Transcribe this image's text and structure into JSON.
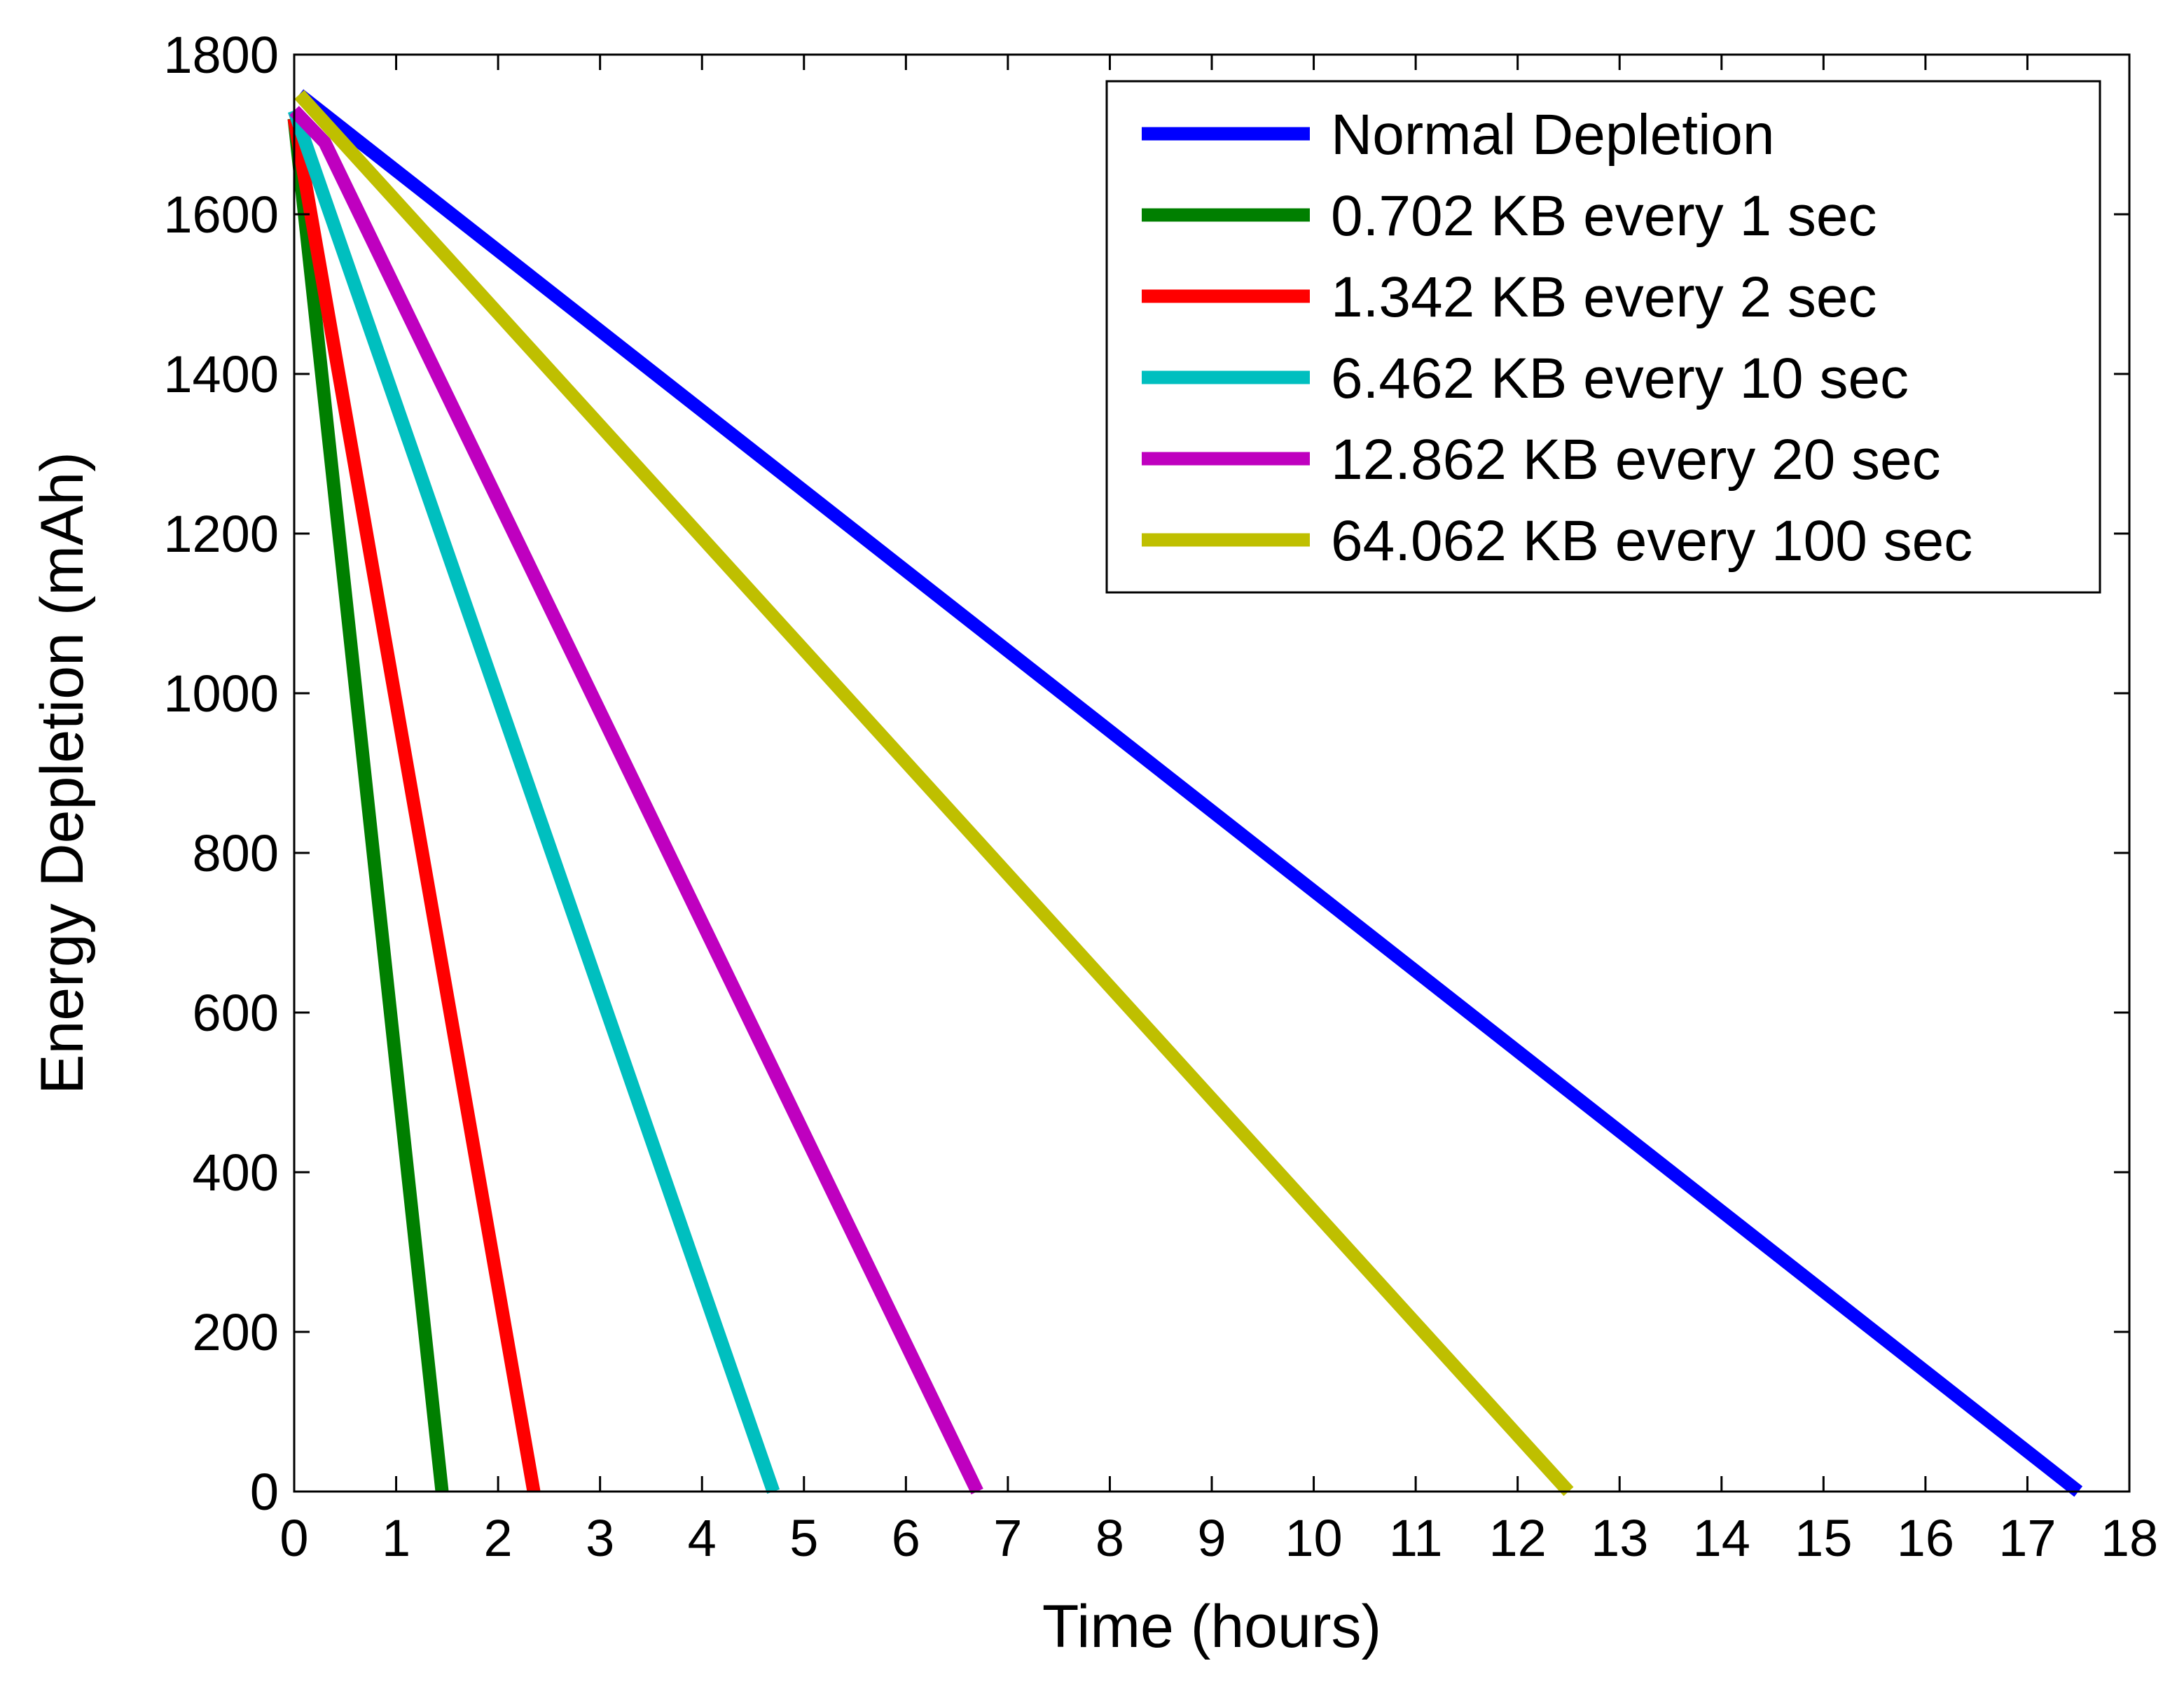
{
  "chart_data": {
    "type": "line",
    "title": "",
    "xlabel": "Time (hours)",
    "ylabel": "Energy Depletion (mAh)",
    "xlim": [
      0,
      18
    ],
    "ylim": [
      0,
      1800
    ],
    "xticks": [
      0,
      1,
      2,
      3,
      4,
      5,
      6,
      7,
      8,
      9,
      10,
      11,
      12,
      13,
      14,
      15,
      16,
      17,
      18
    ],
    "yticks": [
      0,
      200,
      400,
      600,
      800,
      1000,
      1200,
      1400,
      1600,
      1800
    ],
    "grid": false,
    "legend_position": "top-right",
    "series": [
      {
        "name": "Normal Depletion",
        "color": "#0000ff",
        "x": [
          0.05,
          17.5
        ],
        "y": [
          1750,
          0
        ]
      },
      {
        "name": "0.702 KB every 1 sec",
        "color": "#007f00",
        "x": [
          0,
          1.45
        ],
        "y": [
          1720,
          0
        ]
      },
      {
        "name": "1.342 KB every 2 sec",
        "color": "#ff0000",
        "x": [
          0,
          2.35
        ],
        "y": [
          1720,
          0
        ]
      },
      {
        "name": "6.462 KB every 10 sec",
        "color": "#00bfbf",
        "x": [
          0,
          4.7
        ],
        "y": [
          1730,
          0
        ]
      },
      {
        "name": "12.862 KB every 20 sec",
        "color": "#bf00bf",
        "x": [
          0,
          0.3,
          6.7
        ],
        "y": [
          1730,
          1690,
          0
        ]
      },
      {
        "name": "64.062 KB every 100 sec",
        "color": "#bfbf00",
        "x": [
          0.05,
          12.5
        ],
        "y": [
          1750,
          0
        ]
      }
    ]
  }
}
